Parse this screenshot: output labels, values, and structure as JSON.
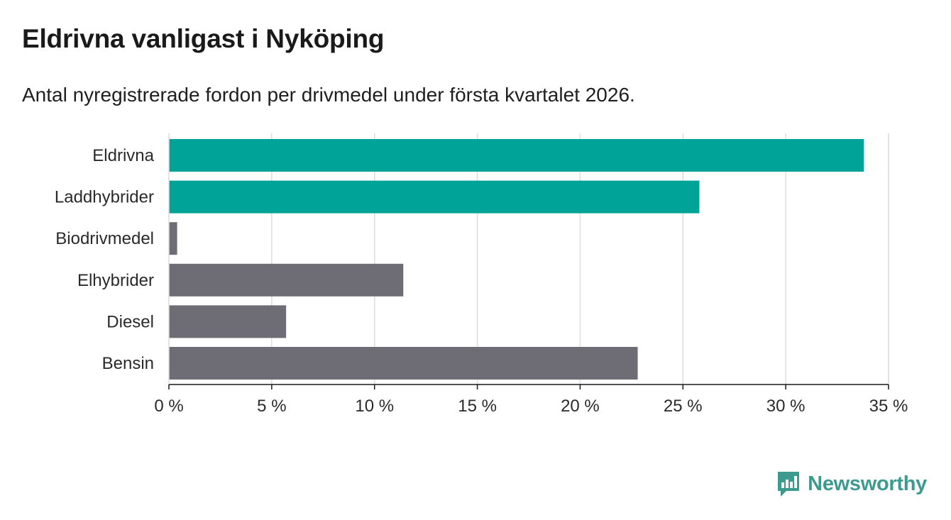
{
  "header": {
    "title": "Eldrivna vanligast i Nyköping",
    "subtitle": "Antal nyregistrerade fordon per drivmedel under första kvartalet 2026."
  },
  "chart_data": {
    "type": "bar",
    "orientation": "horizontal",
    "categories": [
      "Eldrivna",
      "Laddhybrider",
      "Biodrivmedel",
      "Elhybrider",
      "Diesel",
      "Bensin"
    ],
    "values": [
      33.8,
      25.8,
      0.4,
      11.4,
      5.7,
      22.8
    ],
    "colors": [
      "#00a398",
      "#00a398",
      "#6e6d75",
      "#6e6d75",
      "#6e6d75",
      "#6e6d75"
    ],
    "xlim": [
      0,
      35
    ],
    "xticks": [
      0,
      5,
      10,
      15,
      20,
      25,
      30,
      35
    ],
    "xtick_labels": [
      "0 %",
      "5 %",
      "10 %",
      "15 %",
      "20 %",
      "25 %",
      "30 %",
      "35 %"
    ],
    "grid": true,
    "xlabel": "",
    "ylabel": ""
  },
  "branding": {
    "name": "Newsworthy",
    "accent": "#3d9a8e"
  }
}
